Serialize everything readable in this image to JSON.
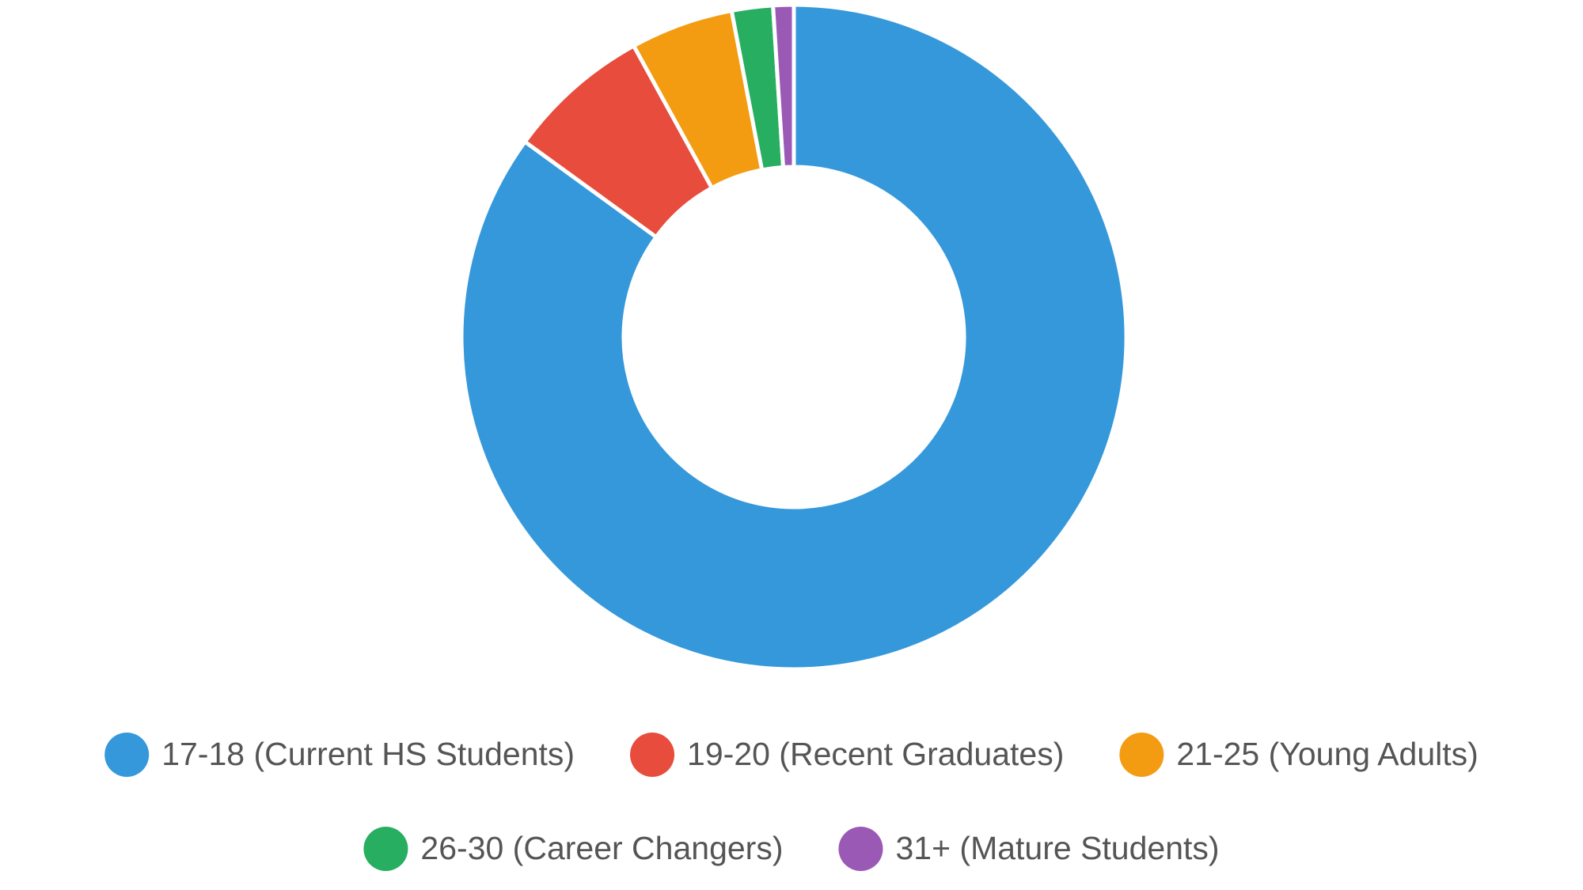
{
  "chart_data": {
    "type": "donut",
    "categories": [
      "17-18 (Current HS Students)",
      "19-20 (Recent Graduates)",
      "21-25 (Young Adults)",
      "26-30 (Career Changers)",
      "31+ (Mature Students)"
    ],
    "values": [
      85,
      7,
      5,
      2,
      1
    ],
    "colors": [
      "#3498db",
      "#e74c3c",
      "#f39c12",
      "#27ae60",
      "#9b59b6"
    ],
    "legend": "bottom"
  }
}
